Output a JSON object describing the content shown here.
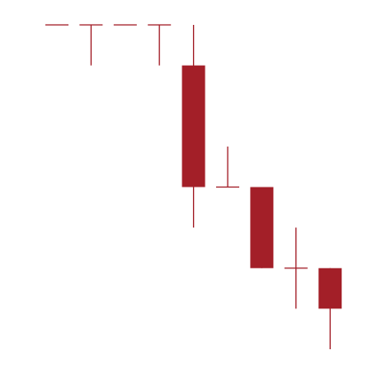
{
  "chart_data": {
    "type": "candlestick",
    "open": [
      10,
      10,
      10,
      10,
      9,
      6,
      6,
      4,
      4
    ],
    "high": [
      10,
      10,
      10,
      10,
      10,
      7,
      6,
      5,
      4
    ],
    "low": [
      10,
      9,
      10,
      9,
      5,
      6,
      4,
      3,
      2
    ],
    "close": [
      10,
      10,
      10,
      10,
      6,
      6,
      4,
      4,
      3
    ],
    "color": "#a31f28"
  }
}
